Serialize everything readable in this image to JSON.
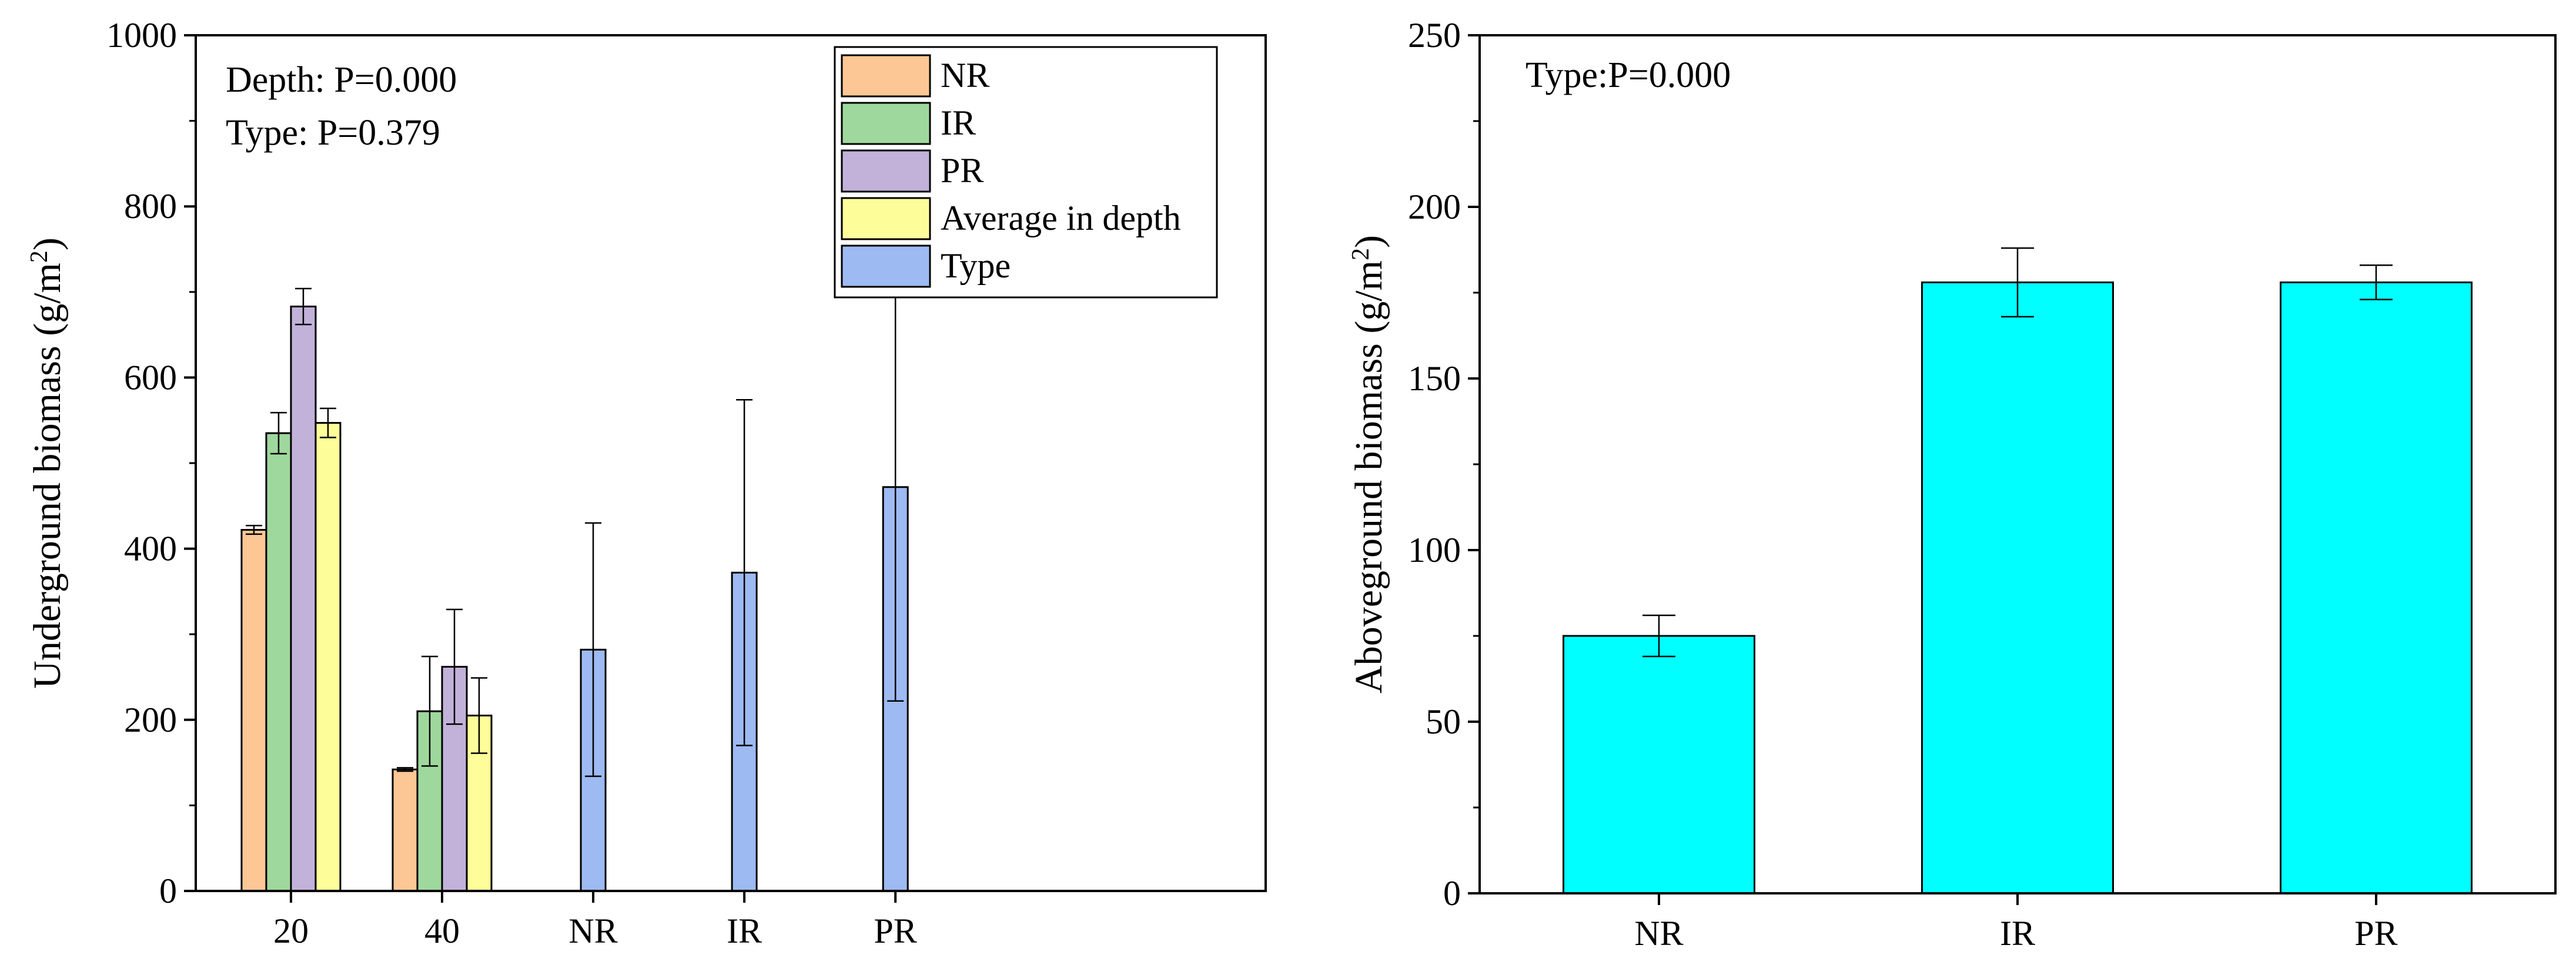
{
  "chart_data": [
    {
      "type": "bar",
      "title": "",
      "ylabel": "Underground biomass (g/m",
      "ylabel_sup": "2",
      "ylabel_close": ")",
      "ylim": [
        0,
        1000
      ],
      "yticks": [
        0,
        200,
        400,
        600,
        800,
        1000
      ],
      "annotations": [
        "Depth: P=0.000",
        "Type: P=0.379"
      ],
      "legend": {
        "placement": "top-center",
        "entries": [
          {
            "label": "NR",
            "color": "#fcc794"
          },
          {
            "label": "IR",
            "color": "#9fd89c"
          },
          {
            "label": "PR",
            "color": "#c2b2d9"
          },
          {
            "label": "Average in depth",
            "color": "#fdfd9a"
          },
          {
            "label": "Type",
            "color": "#9dbaf2"
          }
        ]
      },
      "depth_groups": [
        {
          "category": "20",
          "series": [
            {
              "name": "NR",
              "value": 422,
              "error": 5
            },
            {
              "name": "IR",
              "value": 535,
              "error": 24
            },
            {
              "name": "PR",
              "value": 683,
              "error": 21
            },
            {
              "name": "Average in depth",
              "value": 547,
              "error": 17
            }
          ]
        },
        {
          "category": "40",
          "series": [
            {
              "name": "NR",
              "value": 142,
              "error": 2
            },
            {
              "name": "IR",
              "value": 210,
              "error": 64
            },
            {
              "name": "PR",
              "value": 262,
              "error": 67
            },
            {
              "name": "Average in depth",
              "value": 205,
              "error": 44
            }
          ]
        }
      ],
      "type_bars": {
        "series": "Type",
        "categories": [
          "NR",
          "IR",
          "PR"
        ],
        "values": [
          282,
          372,
          472
        ],
        "errors": [
          148,
          202,
          250
        ]
      }
    },
    {
      "type": "bar",
      "title": "",
      "ylabel": "Aboveground biomass (g/m",
      "ylabel_sup": "2",
      "ylabel_close": ")",
      "ylim": [
        0,
        250
      ],
      "yticks": [
        0,
        50,
        100,
        150,
        200,
        250
      ],
      "annotations": [
        "Type:P=0.000"
      ],
      "color": "#00ffff",
      "categories": [
        "NR",
        "IR",
        "PR"
      ],
      "values": [
        75,
        178,
        178
      ],
      "errors": [
        6,
        10,
        5
      ]
    }
  ]
}
